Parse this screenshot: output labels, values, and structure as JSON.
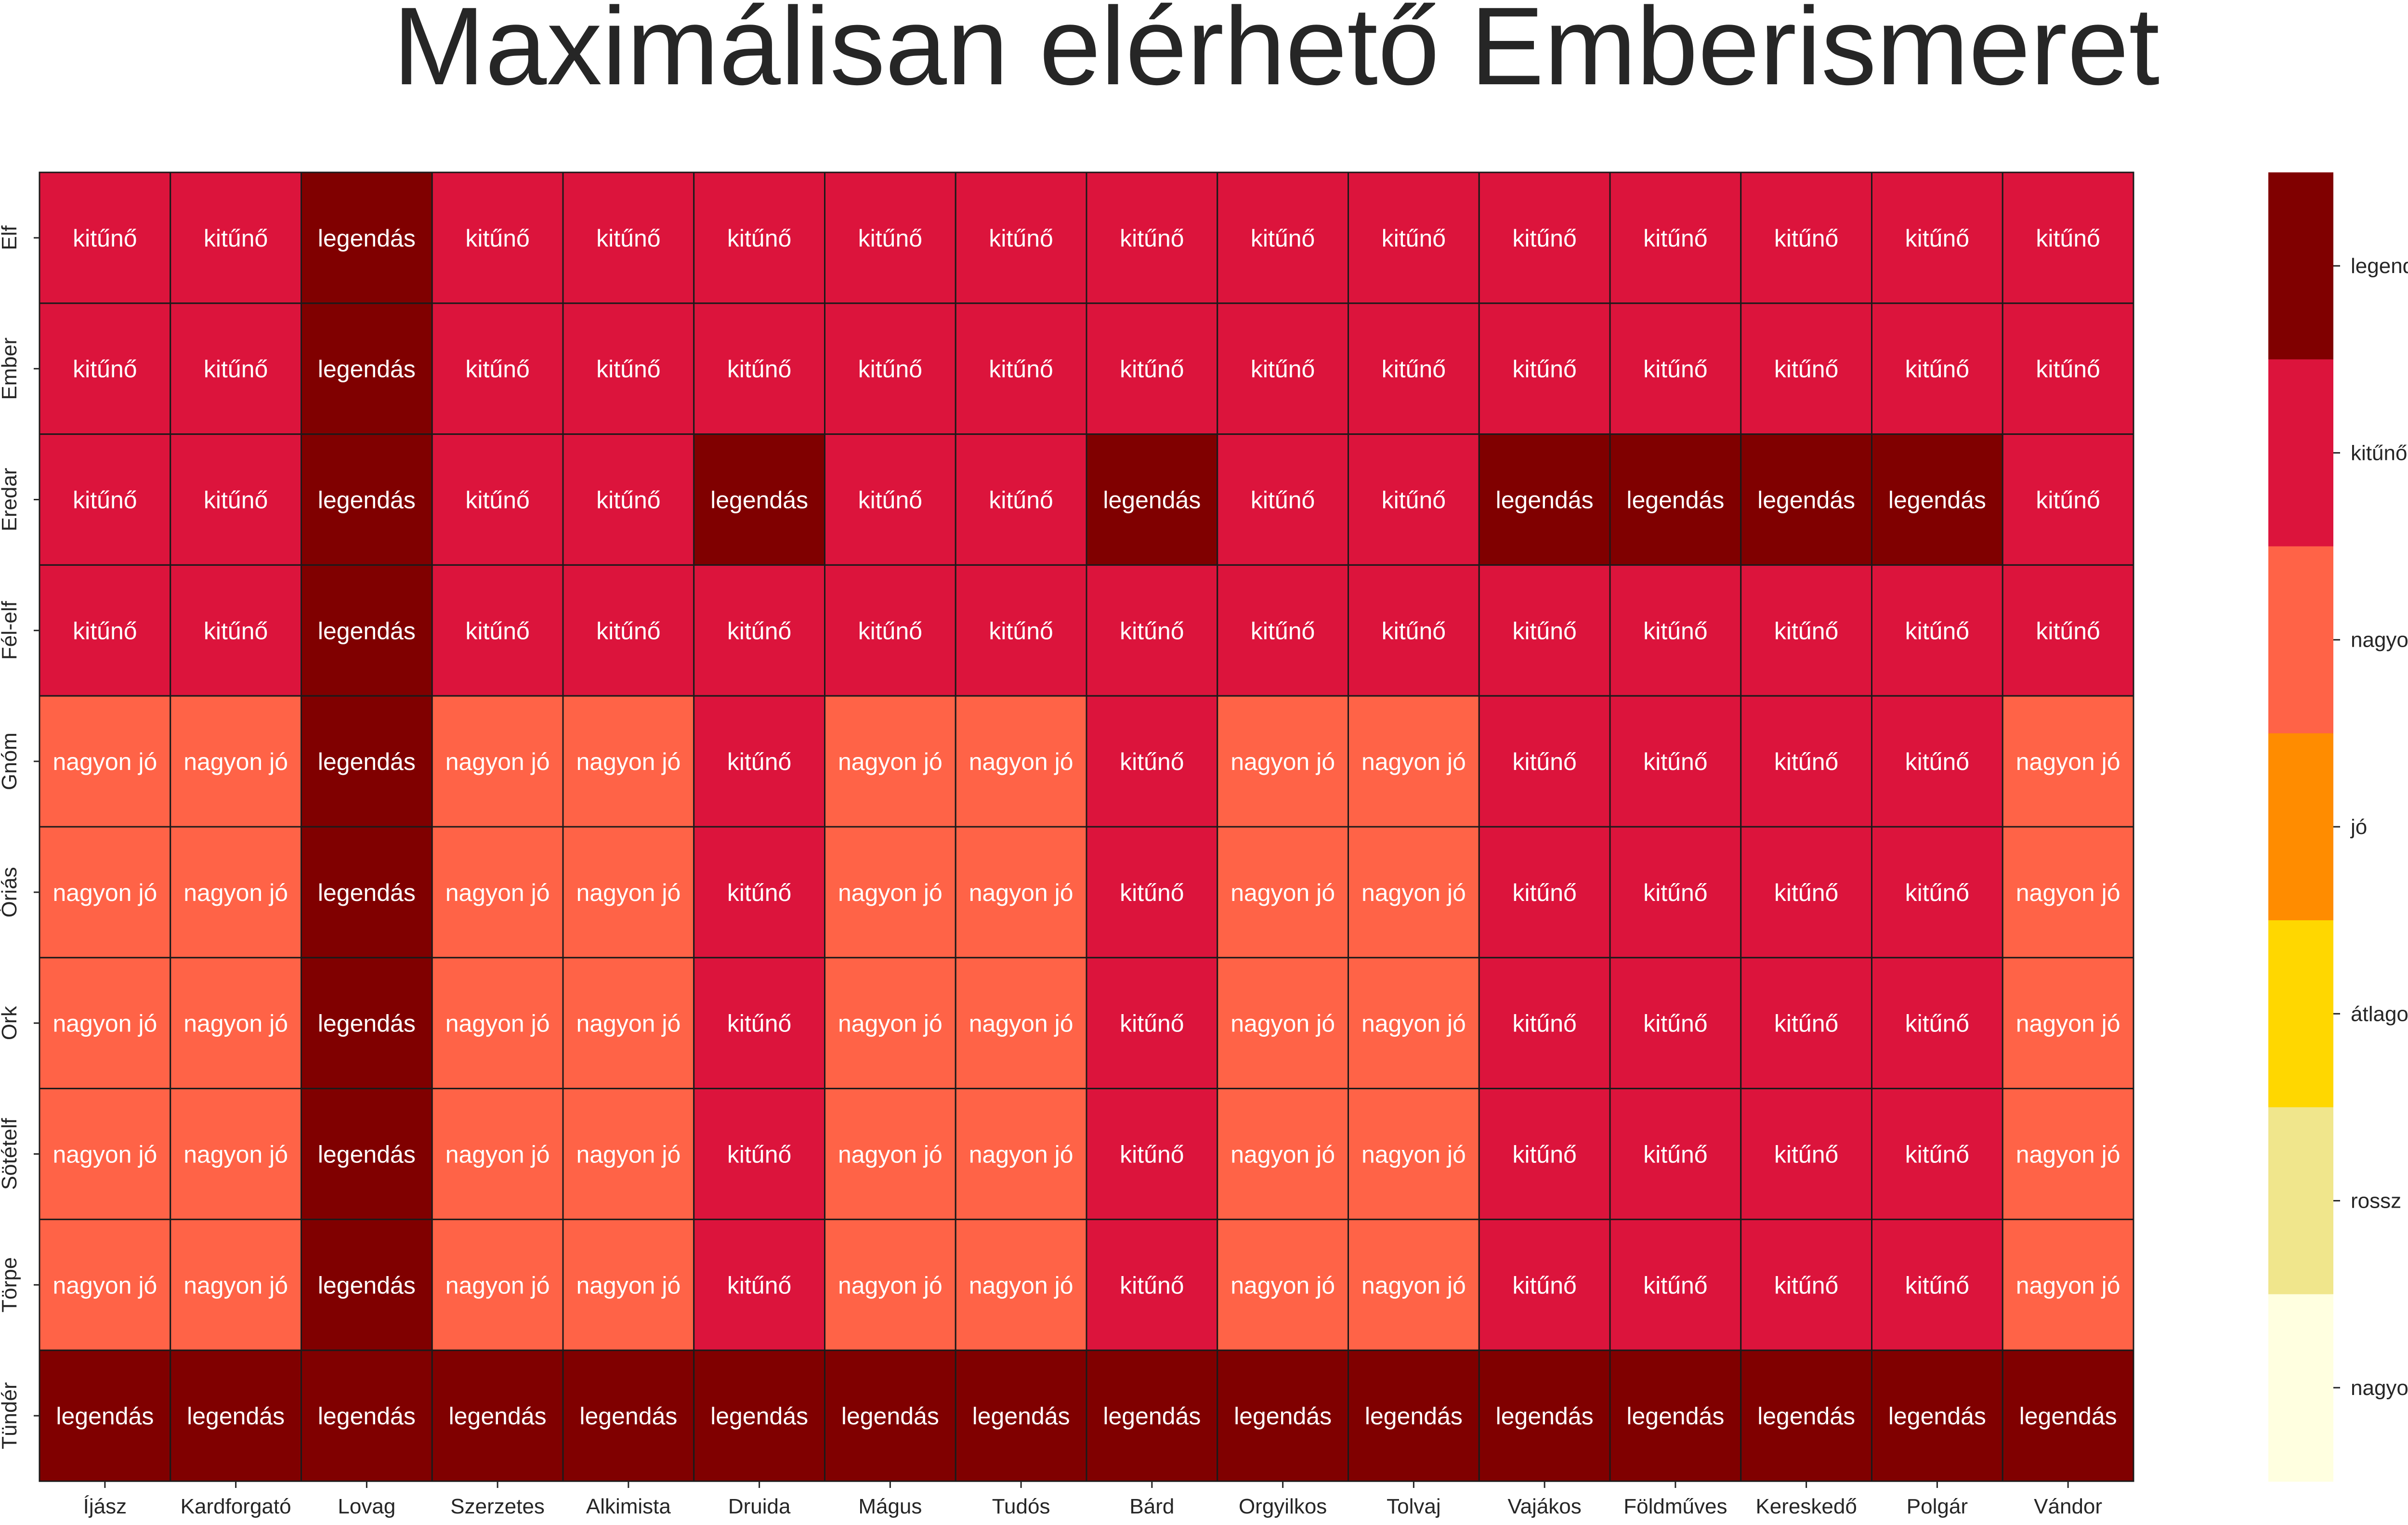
{
  "chart_data": {
    "type": "heatmap",
    "title": "Maximálisan elérhető Emberismeret",
    "xlabel": "",
    "ylabel": "",
    "x_categories": [
      "Íjász",
      "Kardforgató",
      "Lovag",
      "Szerzetes",
      "Alkimista",
      "Druida",
      "Mágus",
      "Tudós",
      "Bárd",
      "Orgyilkos",
      "Tolvaj",
      "Vajákos",
      "Földműves",
      "Kereskedő",
      "Polgár",
      "Vándor"
    ],
    "y_categories": [
      "Elf",
      "Ember",
      "Eredar",
      "Fél-elf",
      "Gnóm",
      "Óriás",
      "Ork",
      "Sötételf",
      "Törpe",
      "Tündér"
    ],
    "levels": [
      "nagyon rossz",
      "rossz",
      "átlagos",
      "jó",
      "nagyon jó",
      "kitűnő",
      "legendás"
    ],
    "level_colors": [
      "#FFFFE0",
      "#F0E68C",
      "#FFD700",
      "#FF8C00",
      "#FF6347",
      "#DC143C",
      "#800000"
    ],
    "values": [
      [
        "kitűnő",
        "kitűnő",
        "legendás",
        "kitűnő",
        "kitűnő",
        "kitűnő",
        "kitűnő",
        "kitűnő",
        "kitűnő",
        "kitűnő",
        "kitűnő",
        "kitűnő",
        "kitűnő",
        "kitűnő",
        "kitűnő",
        "kitűnő"
      ],
      [
        "kitűnő",
        "kitűnő",
        "legendás",
        "kitűnő",
        "kitűnő",
        "kitűnő",
        "kitűnő",
        "kitűnő",
        "kitűnő",
        "kitűnő",
        "kitűnő",
        "kitűnő",
        "kitűnő",
        "kitűnő",
        "kitűnő",
        "kitűnő"
      ],
      [
        "kitűnő",
        "kitűnő",
        "legendás",
        "kitűnő",
        "kitűnő",
        "legendás",
        "kitűnő",
        "kitűnő",
        "legendás",
        "kitűnő",
        "kitűnő",
        "legendás",
        "legendás",
        "legendás",
        "legendás",
        "kitűnő"
      ],
      [
        "kitűnő",
        "kitűnő",
        "legendás",
        "kitűnő",
        "kitűnő",
        "kitűnő",
        "kitűnő",
        "kitűnő",
        "kitűnő",
        "kitűnő",
        "kitűnő",
        "kitűnő",
        "kitűnő",
        "kitűnő",
        "kitűnő",
        "kitűnő"
      ],
      [
        "nagyon jó",
        "nagyon jó",
        "legendás",
        "nagyon jó",
        "nagyon jó",
        "kitűnő",
        "nagyon jó",
        "nagyon jó",
        "kitűnő",
        "nagyon jó",
        "nagyon jó",
        "kitűnő",
        "kitűnő",
        "kitűnő",
        "kitűnő",
        "nagyon jó"
      ],
      [
        "nagyon jó",
        "nagyon jó",
        "legendás",
        "nagyon jó",
        "nagyon jó",
        "kitűnő",
        "nagyon jó",
        "nagyon jó",
        "kitűnő",
        "nagyon jó",
        "nagyon jó",
        "kitűnő",
        "kitűnő",
        "kitűnő",
        "kitűnő",
        "nagyon jó"
      ],
      [
        "nagyon jó",
        "nagyon jó",
        "legendás",
        "nagyon jó",
        "nagyon jó",
        "kitűnő",
        "nagyon jó",
        "nagyon jó",
        "kitűnő",
        "nagyon jó",
        "nagyon jó",
        "kitűnő",
        "kitűnő",
        "kitűnő",
        "kitűnő",
        "nagyon jó"
      ],
      [
        "nagyon jó",
        "nagyon jó",
        "legendás",
        "nagyon jó",
        "nagyon jó",
        "kitűnő",
        "nagyon jó",
        "nagyon jó",
        "kitűnő",
        "nagyon jó",
        "nagyon jó",
        "kitűnő",
        "kitűnő",
        "kitűnő",
        "kitűnő",
        "nagyon jó"
      ],
      [
        "nagyon jó",
        "nagyon jó",
        "legendás",
        "nagyon jó",
        "nagyon jó",
        "kitűnő",
        "nagyon jó",
        "nagyon jó",
        "kitűnő",
        "nagyon jó",
        "nagyon jó",
        "kitűnő",
        "kitűnő",
        "kitűnő",
        "kitűnő",
        "nagyon jó"
      ],
      [
        "legendás",
        "legendás",
        "legendás",
        "legendás",
        "legendás",
        "legendás",
        "legendás",
        "legendás",
        "legendás",
        "legendás",
        "legendás",
        "legendás",
        "legendás",
        "legendás",
        "legendás",
        "legendás"
      ]
    ],
    "colorbar": {
      "position": "right",
      "ticks": [
        "legendás",
        "kitűnő",
        "nagyon jó",
        "jó",
        "átlagos",
        "rossz",
        "nagyon rossz"
      ]
    },
    "grid": true,
    "legend": "colorbar-right"
  }
}
